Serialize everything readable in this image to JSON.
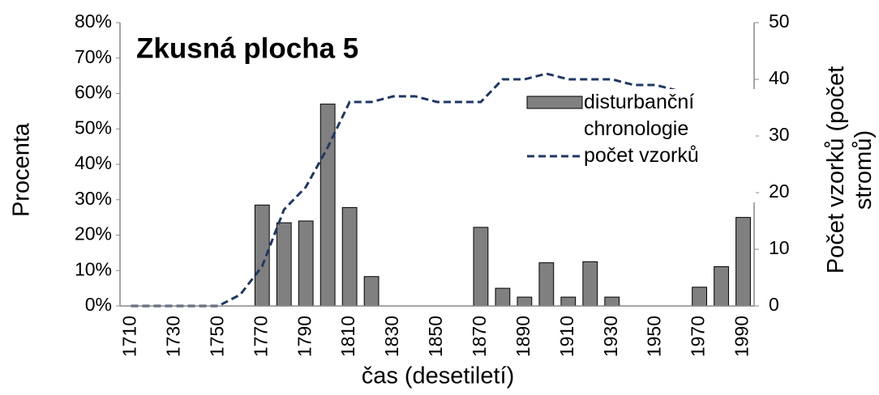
{
  "chart_data": {
    "type": "bar",
    "title": "Zkusná plocha 5",
    "xlabel": "čas (desetiletí)",
    "ylabel": "Procenta",
    "y2label": "Počet vzorků (počet stromů)",
    "categories": [
      "1710",
      null,
      "1730",
      null,
      "1750",
      null,
      "1770",
      null,
      "1790",
      null,
      "1810",
      null,
      "1830",
      null,
      "1850",
      null,
      "1870",
      null,
      "1890",
      null,
      "1910",
      null,
      "1930",
      null,
      "1950",
      null,
      "1970",
      null,
      "1990"
    ],
    "series": [
      {
        "name": "disturbanční chronologie",
        "type": "bar",
        "color": "#808080",
        "values": [
          0,
          0,
          0,
          0,
          0,
          0,
          28.5,
          23.5,
          24,
          57,
          27.8,
          8.3,
          0,
          0,
          0,
          0,
          22.2,
          5,
          2.5,
          12.2,
          2.5,
          12.5,
          2.5,
          0,
          0,
          0,
          5.3,
          11.1,
          25
        ]
      },
      {
        "name": "počet vzorků",
        "type": "line",
        "color": "#1f3864",
        "axis": "y2",
        "values": [
          0,
          0,
          0,
          0,
          0,
          2,
          7,
          17,
          21,
          28,
          36,
          36,
          37,
          37,
          36,
          36,
          36,
          40,
          40,
          41,
          40,
          40,
          40,
          39,
          39,
          38,
          38,
          37,
          36
        ]
      }
    ],
    "ylim": [
      0,
      80
    ],
    "yticks": [
      {
        "value": 0,
        "label": "0%"
      },
      {
        "value": 10,
        "label": "10%"
      },
      {
        "value": 20,
        "label": "20%"
      },
      {
        "value": 30,
        "label": "30%"
      },
      {
        "value": 40,
        "label": "40%"
      },
      {
        "value": 50,
        "label": "50%"
      },
      {
        "value": 60,
        "label": "60%"
      },
      {
        "value": 70,
        "label": "70%"
      },
      {
        "value": 80,
        "label": "80%"
      }
    ],
    "y2lim": [
      0,
      50
    ],
    "y2ticks": [
      0,
      10,
      20,
      30,
      40,
      50
    ],
    "grid": false
  }
}
